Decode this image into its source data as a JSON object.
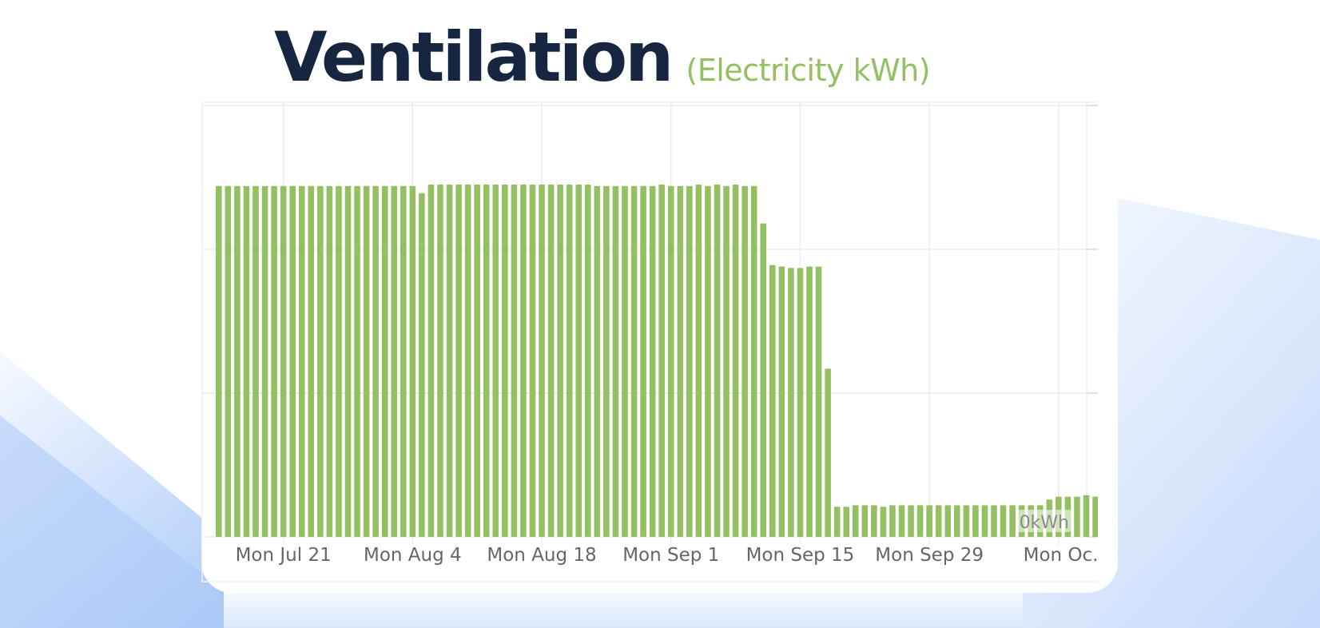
{
  "header": {
    "title": "Ventilation",
    "subtitle": "(Electricity kWh)"
  },
  "colors": {
    "bar": "#94c062",
    "title": "#172640",
    "subtitle": "#94c062",
    "grid": "#ebebeb",
    "tick_label": "#666666"
  },
  "chart_data": {
    "type": "bar",
    "ylim": [
      0,
      3
    ],
    "grid": true,
    "y_tick_values": [
      0,
      1,
      2,
      3
    ],
    "y_tick_label": "0kWh",
    "x_ticks": [
      {
        "label": "Mon Jul 21",
        "index": 7
      },
      {
        "label": "Mon Aug 4",
        "index": 21
      },
      {
        "label": "Mon Aug 18",
        "index": 35
      },
      {
        "label": "Mon Sep 1",
        "index": 49
      },
      {
        "label": "Mon Sep 15",
        "index": 63
      },
      {
        "label": "Mon Sep 29",
        "index": 77
      },
      {
        "label": "Mon Oc...",
        "index": 91
      }
    ],
    "values": [
      2.44,
      2.44,
      2.44,
      2.44,
      2.44,
      2.44,
      2.44,
      2.44,
      2.44,
      2.44,
      2.44,
      2.44,
      2.44,
      2.44,
      2.44,
      2.44,
      2.44,
      2.44,
      2.44,
      2.44,
      2.44,
      2.44,
      2.39,
      2.45,
      2.45,
      2.45,
      2.45,
      2.45,
      2.45,
      2.45,
      2.45,
      2.45,
      2.45,
      2.45,
      2.45,
      2.45,
      2.45,
      2.45,
      2.45,
      2.45,
      2.45,
      2.44,
      2.44,
      2.44,
      2.44,
      2.44,
      2.44,
      2.44,
      2.45,
      2.44,
      2.44,
      2.44,
      2.45,
      2.44,
      2.45,
      2.44,
      2.45,
      2.44,
      2.44,
      2.18,
      1.89,
      1.88,
      1.87,
      1.87,
      1.88,
      1.88,
      1.17,
      0.21,
      0.21,
      0.22,
      0.22,
      0.22,
      0.21,
      0.22,
      0.22,
      0.22,
      0.22,
      0.22,
      0.22,
      0.22,
      0.22,
      0.22,
      0.22,
      0.22,
      0.22,
      0.22,
      0.22,
      0.22,
      0.22,
      0.22,
      0.26,
      0.28,
      0.28,
      0.28,
      0.29,
      0.28,
      0.22,
      0.22,
      0.22
    ]
  }
}
